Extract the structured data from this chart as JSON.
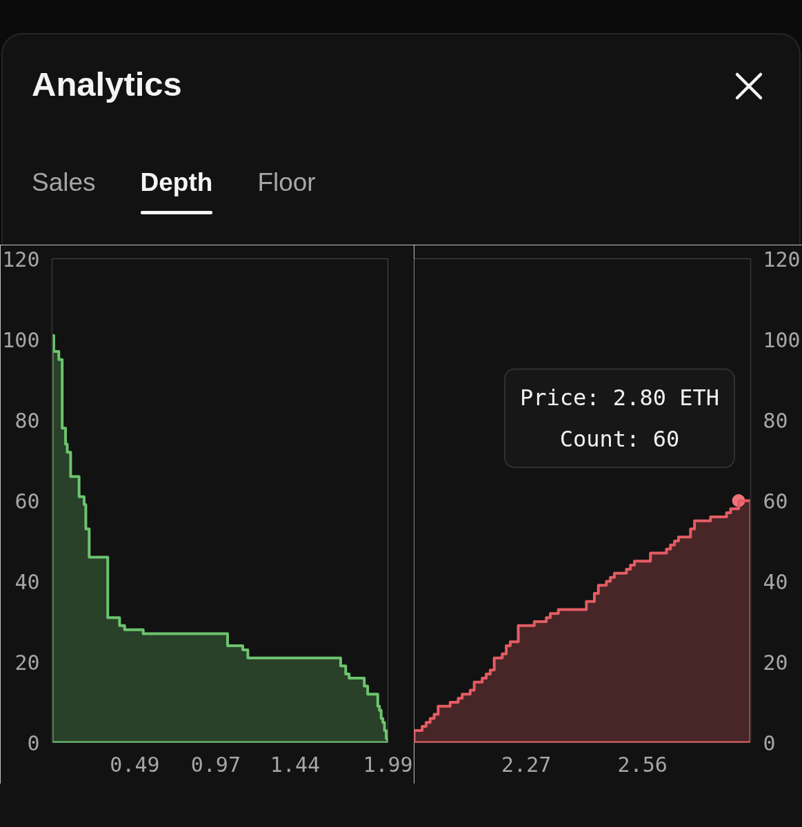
{
  "chart_data": [
    {
      "type": "area",
      "title": "Analytics",
      "subtitle": "Depth",
      "annotations": [
        "Sales",
        "Floor"
      ],
      "xlim": [
        0,
        1.99
      ],
      "xticks": [
        0.49,
        0.97,
        1.44,
        1.99
      ],
      "ylim": [
        0,
        120
      ],
      "yticks": [
        0,
        20,
        40,
        60,
        80,
        100,
        120
      ],
      "series": [
        {
          "color": "#6cc46e",
          "x": [
            0.0,
            0.01,
            0.04,
            0.06,
            0.08,
            0.09,
            0.11,
            0.16,
            0.19,
            0.2,
            0.22,
            0.33,
            0.4,
            0.43,
            0.54,
            1.04,
            1.13,
            1.16,
            1.71,
            1.74,
            1.76,
            1.85,
            1.87,
            1.93,
            1.94,
            1.95,
            1.96,
            1.97,
            1.98,
            1.99
          ],
          "values": [
            101,
            97,
            95,
            78,
            74,
            72,
            66,
            61,
            59,
            53,
            46,
            31,
            29,
            28,
            27,
            24,
            23,
            21,
            19,
            17,
            16,
            14,
            12,
            9,
            8,
            6,
            5,
            3,
            1,
            1
          ]
        }
      ]
    },
    {
      "type": "area",
      "annotations": [
        "Price: 2.80 ETH",
        "Count: 60"
      ],
      "xlim": [
        1.99,
        2.83
      ],
      "xticks": [
        2.27,
        2.56
      ],
      "y2lim": [
        0,
        120
      ],
      "y2ticks": [
        0,
        20,
        40,
        60,
        80,
        100,
        120
      ],
      "series": [
        {
          "color": "#e35d63",
          "axis": "y2",
          "x": [
            1.99,
            2.01,
            2.02,
            2.03,
            2.04,
            2.05,
            2.08,
            2.1,
            2.11,
            2.13,
            2.14,
            2.16,
            2.17,
            2.18,
            2.19,
            2.21,
            2.22,
            2.23,
            2.25,
            2.29,
            2.32,
            2.33,
            2.35,
            2.42,
            2.44,
            2.45,
            2.47,
            2.48,
            2.49,
            2.52,
            2.53,
            2.54,
            2.58,
            2.62,
            2.63,
            2.64,
            2.65,
            2.68,
            2.69,
            2.73,
            2.77,
            2.78,
            2.8,
            2.83
          ],
          "values": [
            3,
            4,
            5,
            6,
            7,
            9,
            10,
            11,
            12,
            13,
            15,
            16,
            17,
            18,
            21,
            22,
            24,
            25,
            29,
            30,
            31,
            32,
            33,
            35,
            37,
            39,
            40,
            41,
            42,
            43,
            44,
            45,
            47,
            48,
            49,
            50,
            51,
            53,
            55,
            56,
            57,
            58,
            60,
            60
          ]
        },
        {
          "type": "scatter",
          "axis": "y2",
          "color": "#f0737a",
          "x": [
            2.8
          ],
          "values": [
            60
          ]
        }
      ]
    }
  ]
}
